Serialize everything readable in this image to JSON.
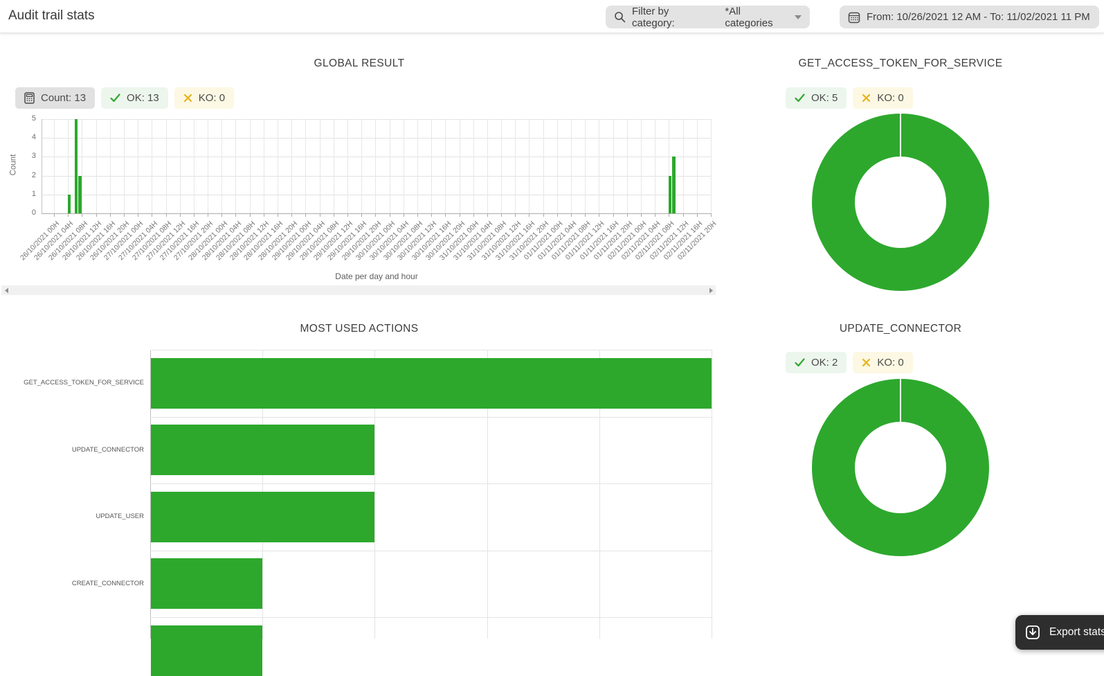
{
  "header": {
    "title": "Audit trail stats",
    "filter": {
      "label": "Filter by category:",
      "value": "*All categories"
    },
    "date_range": "From: 10/26/2021 12 AM - To: 11/02/2021 11 PM"
  },
  "panels": {
    "global": {
      "title": "GLOBAL RESULT",
      "count_badge": "Count: 13",
      "ok_badge": "OK: 13",
      "ko_badge": "KO: 0"
    },
    "token_donut": {
      "title": "GET_ACCESS_TOKEN_FOR_SERVICE",
      "ok_badge": "OK: 5",
      "ko_badge": "KO: 0"
    },
    "actions": {
      "title": "MOST USED ACTIONS"
    },
    "connector_donut": {
      "title": "UPDATE_CONNECTOR",
      "ok_badge": "OK: 2",
      "ko_badge": "KO: 0"
    }
  },
  "export_button": {
    "label": "Export stats"
  },
  "colors": {
    "green": "#2da82d",
    "amber": "#e6b31a",
    "badge_green_bg": "#edf6ed",
    "badge_yellow_bg": "#fcf8e3",
    "badge_gray_bg": "#e1e1e1",
    "pill_bg": "#e3e3e3",
    "button_bg": "#2e2e2e"
  },
  "chart_data": [
    {
      "type": "bar",
      "title": "GLOBAL RESULT",
      "xlabel": "Date per day and hour",
      "ylabel": "Count",
      "ylim": [
        0,
        5
      ],
      "yticks": [
        0,
        1,
        2,
        3,
        4,
        5
      ],
      "grid": true,
      "bar_color": "#2da82d",
      "summary": {
        "count": 13,
        "ok": 13,
        "ko": 0
      },
      "x_ticks": [
        "26/10/2021 00H",
        "26/10/2021 04H",
        "26/10/2021 08H",
        "26/10/2021 12H",
        "26/10/2021 16H",
        "26/10/2021 20H",
        "27/10/2021 00H",
        "27/10/2021 04H",
        "27/10/2021 08H",
        "27/10/2021 12H",
        "27/10/2021 16H",
        "27/10/2021 20H",
        "28/10/2021 00H",
        "28/10/2021 04H",
        "28/10/2021 08H",
        "28/10/2021 12H",
        "28/10/2021 16H",
        "28/10/2021 20H",
        "29/10/2021 00H",
        "29/10/2021 04H",
        "29/10/2021 08H",
        "29/10/2021 12H",
        "29/10/2021 16H",
        "29/10/2021 20H",
        "30/10/2021 00H",
        "30/10/2021 04H",
        "30/10/2021 08H",
        "30/10/2021 12H",
        "30/10/2021 16H",
        "30/10/2021 20H",
        "31/10/2021 00H",
        "31/10/2021 04H",
        "31/10/2021 08H",
        "31/10/2021 12H",
        "31/10/2021 16H",
        "31/10/2021 20H",
        "01/11/2021 00H",
        "01/11/2021 04H",
        "01/11/2021 08H",
        "01/11/2021 12H",
        "01/11/2021 16H",
        "01/11/2021 20H",
        "02/11/2021 00H",
        "02/11/2021 04H",
        "02/11/2021 08H",
        "02/11/2021 12H",
        "02/11/2021 16H",
        "02/11/2021 20H"
      ],
      "bars": [
        {
          "label": "26/10/2021 04H",
          "hours_from_start": 4,
          "count": 1
        },
        {
          "label": "26/10/2021 06H",
          "hours_from_start": 6,
          "count": 5
        },
        {
          "label": "26/10/2021 07H",
          "hours_from_start": 7,
          "count": 2
        },
        {
          "label": "02/11/2021 08H",
          "hours_from_start": 176,
          "count": 2
        },
        {
          "label": "02/11/2021 09H",
          "hours_from_start": 177,
          "count": 3
        }
      ]
    },
    {
      "type": "pie",
      "donut": true,
      "title": "GET_ACCESS_TOKEN_FOR_SERVICE",
      "slices": [
        {
          "label": "OK",
          "value": 5,
          "color": "#2da82d"
        },
        {
          "label": "KO",
          "value": 0,
          "color": "#e6b31a"
        }
      ]
    },
    {
      "type": "bar",
      "orientation": "horizontal",
      "title": "MOST USED ACTIONS",
      "categories": [
        "GET_ACCESS_TOKEN_FOR_SERVICE",
        "UPDATE_CONNECTOR",
        "UPDATE_USER",
        "CREATE_CONNECTOR",
        ""
      ],
      "values": [
        5,
        2,
        2,
        1,
        1
      ],
      "xlim": [
        0,
        5
      ],
      "grid": true,
      "note": "fifth row is cut off at the bottom edge of the viewport; its label is not visible"
    },
    {
      "type": "pie",
      "donut": true,
      "title": "UPDATE_CONNECTOR",
      "slices": [
        {
          "label": "OK",
          "value": 2,
          "color": "#2da82d"
        },
        {
          "label": "KO",
          "value": 0,
          "color": "#e6b31a"
        }
      ]
    }
  ]
}
